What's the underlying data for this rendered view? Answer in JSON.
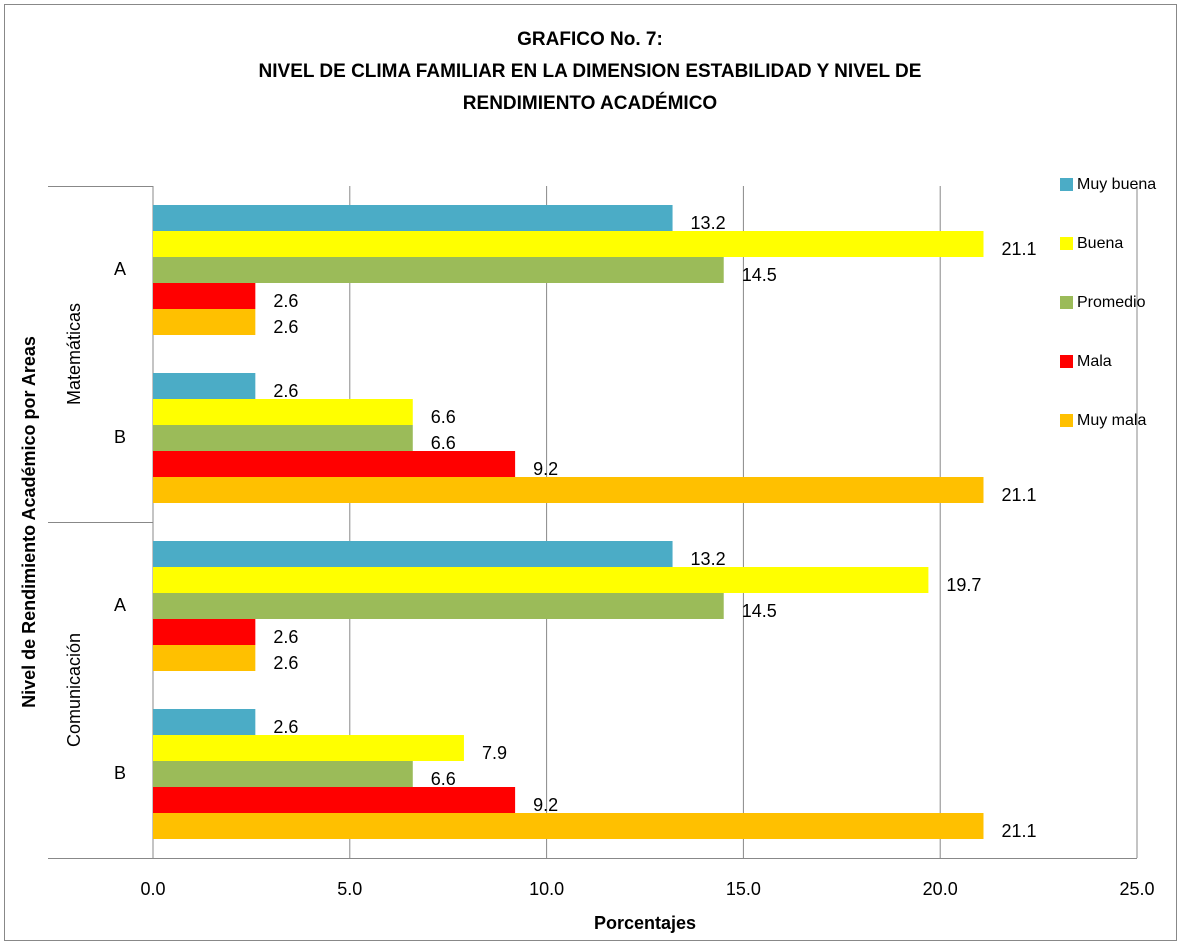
{
  "chart_data": {
    "type": "bar",
    "orientation": "horizontal",
    "title": [
      "GRAFICO No. 7:",
      "NIVEL DE CLIMA FAMILIAR  EN LA DIMENSION ESTABILIDAD Y NIVEL DE",
      "RENDIMIENTO ACADÉMICO"
    ],
    "y_label": "Nivel de Rendimiento Académico por Areas",
    "x_label": "Porcentajes",
    "category_groups": [
      "Matemáticas",
      "Comunicación"
    ],
    "categories": [
      "A",
      "B",
      "A",
      "B"
    ],
    "series": [
      {
        "name": "Muy buena",
        "color": "#4bacc6",
        "values": [
          13.2,
          2.6,
          13.2,
          2.6
        ]
      },
      {
        "name": "Buena",
        "color": "#ffff00",
        "values": [
          21.1,
          6.6,
          19.7,
          7.9
        ]
      },
      {
        "name": "Promedio",
        "color": "#9bbb59",
        "values": [
          14.5,
          6.6,
          14.5,
          6.6
        ]
      },
      {
        "name": "Mala",
        "color": "#ff0000",
        "values": [
          2.6,
          9.2,
          2.6,
          9.2
        ]
      },
      {
        "name": "Muy mala",
        "color": "#ffc000",
        "values": [
          2.6,
          21.1,
          2.6,
          21.1
        ]
      }
    ],
    "xlim": [
      0,
      25
    ],
    "xticks": [
      {
        "value": 0,
        "label": "0.0"
      },
      {
        "value": 5,
        "label": "5.0"
      },
      {
        "value": 10,
        "label": "10.0"
      },
      {
        "value": 15,
        "label": "15.0"
      },
      {
        "value": 20,
        "label": "20.0"
      },
      {
        "value": 25,
        "label": "25.0"
      }
    ],
    "grid": true,
    "legend": "right"
  }
}
